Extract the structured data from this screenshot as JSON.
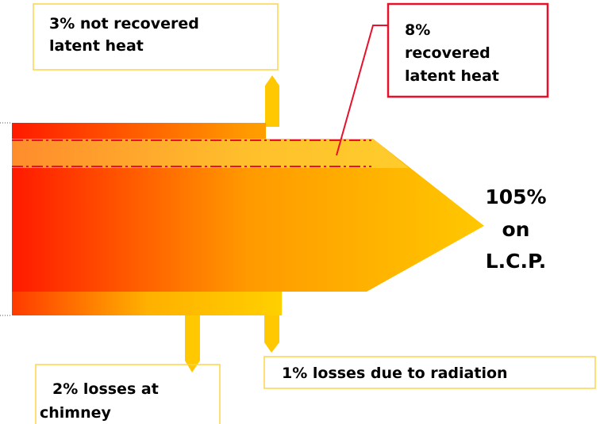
{
  "labels": {
    "not_recovered": [
      "3% not recovered",
      "latent heat"
    ],
    "recovered": [
      "8%",
      "recovered",
      "latent heat"
    ],
    "chimney": [
      "2% losses at",
      "chimney"
    ],
    "radiation": [
      "1% losses due to radiation"
    ],
    "output": [
      "105%",
      "on",
      "L.C.P."
    ]
  }
}
